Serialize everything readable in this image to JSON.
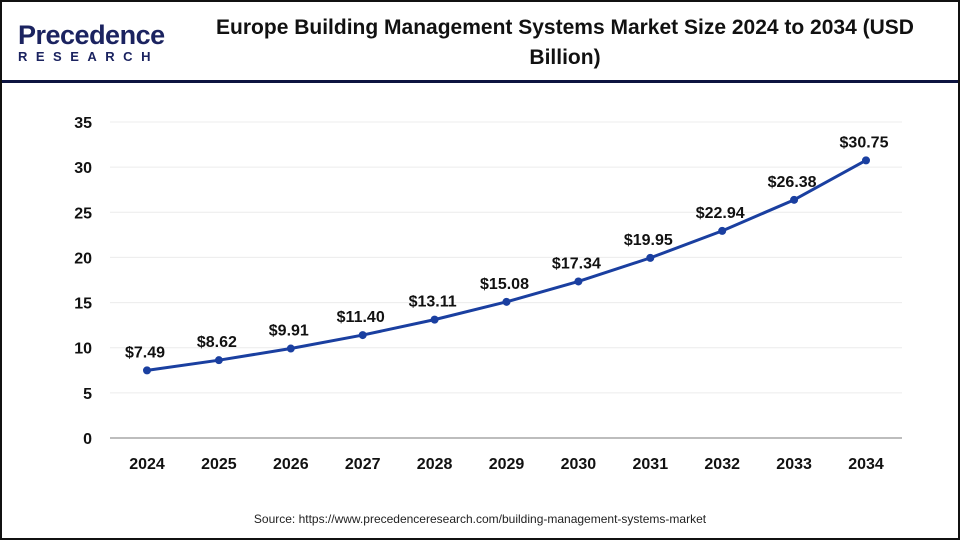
{
  "header": {
    "logo_text": "Precedence",
    "logo_subtext": "RESEARCH",
    "title": "Europe Building Management Systems Market Size 2024 to 2034 (USD Billion)"
  },
  "chart_data": {
    "type": "line",
    "title": "Europe Building Management Systems Market Size 2024 to 2034 (USD Billion)",
    "categories": [
      "2024",
      "2025",
      "2026",
      "2027",
      "2028",
      "2029",
      "2030",
      "2031",
      "2032",
      "2033",
      "2034"
    ],
    "values": [
      7.49,
      8.62,
      9.91,
      11.4,
      13.11,
      15.08,
      17.34,
      19.95,
      22.94,
      26.38,
      30.75
    ],
    "data_labels": [
      "$7.49",
      "$8.62",
      "$9.91",
      "$11.40",
      "$13.11",
      "$15.08",
      "$17.34",
      "$19.95",
      "$22.94",
      "$26.38",
      "$30.75"
    ],
    "ylim": [
      0,
      35
    ],
    "yticks": [
      "0",
      "5",
      "10",
      "15",
      "20",
      "25",
      "30",
      "35"
    ],
    "grid": true,
    "line_color": "#1a3fa0"
  },
  "footer": {
    "source": "Source: https://www.precedenceresearch.com/building-management-systems-market"
  }
}
